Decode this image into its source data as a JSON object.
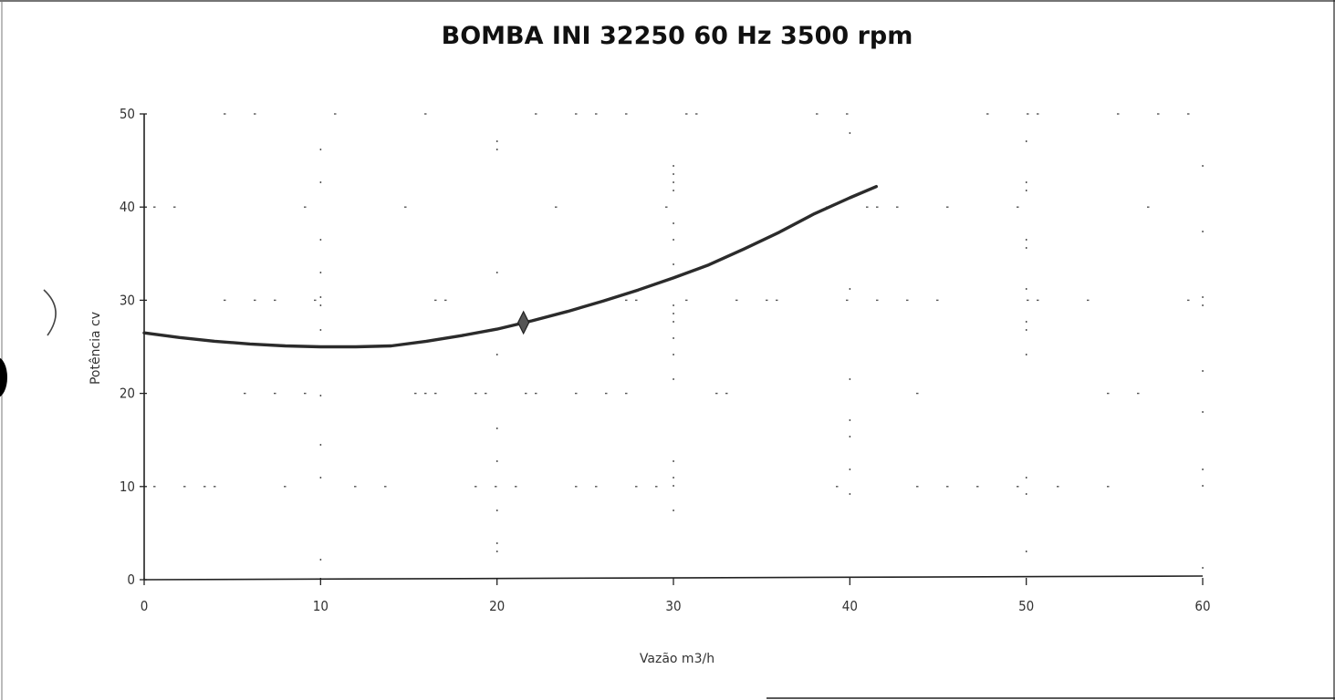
{
  "chart_data": {
    "type": "line",
    "title": "BOMBA INI 32250 60 Hz 3500 rpm",
    "xlabel": "Vazão m3/h",
    "ylabel": "Potência cv",
    "xlim": [
      0,
      60
    ],
    "ylim": [
      0,
      50
    ],
    "x_ticks": [
      "0",
      "10",
      "20",
      "30",
      "40",
      "50",
      "60"
    ],
    "y_ticks": [
      "0",
      "10",
      "20",
      "30",
      "40",
      "50"
    ],
    "grid": "dotted",
    "series": [
      {
        "x": [
          0,
          2,
          4,
          6,
          8,
          10,
          12,
          14,
          16,
          18,
          20,
          22,
          24,
          26,
          28,
          30,
          32,
          34,
          36,
          38,
          40,
          41.5
        ],
        "y": [
          26.5,
          26.0,
          25.6,
          25.3,
          25.1,
          25.0,
          25.0,
          25.1,
          25.6,
          26.2,
          26.9,
          27.8,
          28.8,
          29.9,
          31.1,
          32.4,
          33.8,
          35.5,
          37.3,
          39.3,
          41.0,
          42.2
        ],
        "color": "#2b2b2b"
      }
    ],
    "marker": {
      "x": 21.5,
      "y": 27.6,
      "shape": "diamond"
    }
  }
}
